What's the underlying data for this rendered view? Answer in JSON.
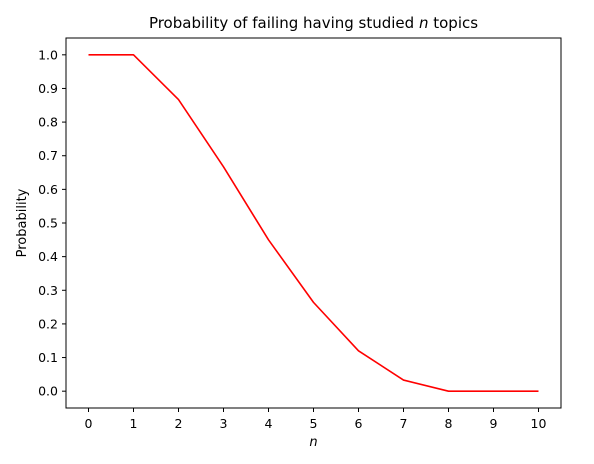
{
  "chart_data": {
    "type": "line",
    "title": "Probability of failing having studied ",
    "title_var": "n",
    "title_suffix": " topics",
    "xlabel": "n",
    "ylabel": "Probability",
    "xlim": [
      -0.5,
      10.5
    ],
    "ylim": [
      -0.05,
      1.05
    ],
    "xticks": [
      0,
      1,
      2,
      3,
      4,
      5,
      6,
      7,
      8,
      9,
      10
    ],
    "xtick_labels": [
      "0",
      "1",
      "2",
      "3",
      "4",
      "5",
      "6",
      "7",
      "8",
      "9",
      "10"
    ],
    "yticks": [
      0.0,
      0.1,
      0.2,
      0.3,
      0.4,
      0.5,
      0.6,
      0.7,
      0.8,
      0.9,
      1.0
    ],
    "ytick_labels": [
      "0.0",
      "0.1",
      "0.2",
      "0.3",
      "0.4",
      "0.5",
      "0.6",
      "0.7",
      "0.8",
      "0.9",
      "1.0"
    ],
    "grid": false,
    "series": [
      {
        "color": "#ff0000",
        "x": [
          0,
          1,
          2,
          3,
          4,
          5,
          6,
          7,
          8,
          9,
          10
        ],
        "y": [
          1.0,
          1.0,
          0.867,
          0.667,
          0.45,
          0.264,
          0.12,
          0.033,
          0.0,
          0.0,
          0.0
        ]
      }
    ]
  }
}
